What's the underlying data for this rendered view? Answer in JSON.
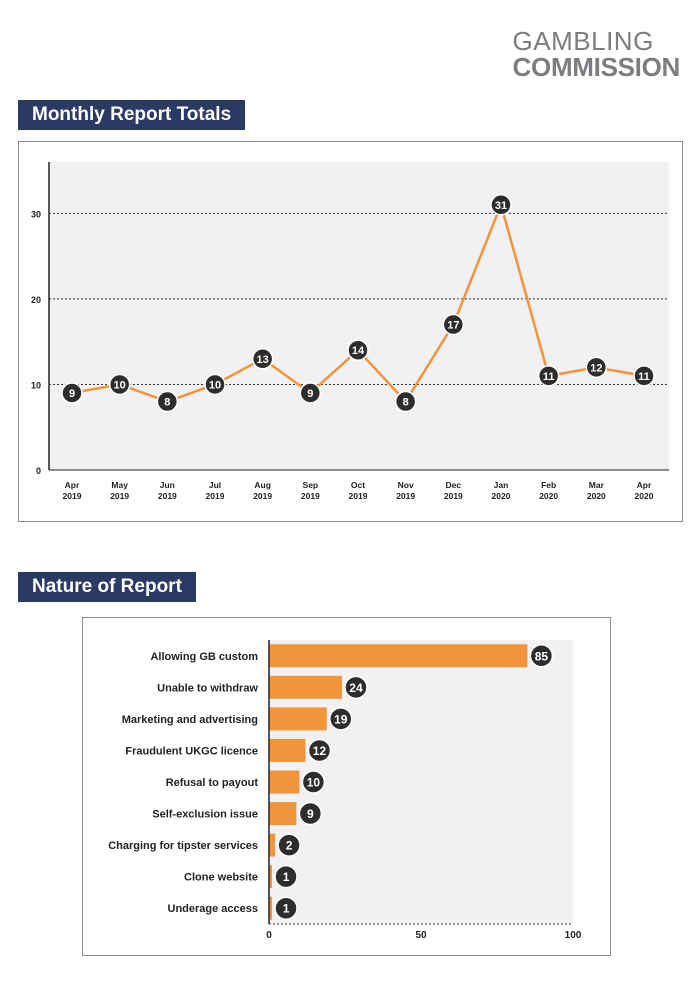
{
  "logo": {
    "line1": "GAMBLING",
    "line2": "COMMISSION"
  },
  "sections": {
    "monthly_title": "Monthly Report Totals",
    "nature_title": "Nature of Report"
  },
  "chart_data": [
    {
      "type": "line",
      "title": "Monthly Report Totals",
      "categories": [
        [
          "Apr",
          "2019"
        ],
        [
          "May",
          "2019"
        ],
        [
          "Jun",
          "2019"
        ],
        [
          "Jul",
          "2019"
        ],
        [
          "Aug",
          "2019"
        ],
        [
          "Sep",
          "2019"
        ],
        [
          "Oct",
          "2019"
        ],
        [
          "Nov",
          "2019"
        ],
        [
          "Dec",
          "2019"
        ],
        [
          "Jan",
          "2020"
        ],
        [
          "Feb",
          "2020"
        ],
        [
          "Mar",
          "2020"
        ],
        [
          "Apr",
          "2020"
        ]
      ],
      "values": [
        9,
        10,
        8,
        10,
        13,
        9,
        14,
        8,
        17,
        31,
        11,
        12,
        11
      ],
      "yticks": [
        0,
        10,
        20,
        30
      ],
      "ylim": [
        0,
        36
      ],
      "grid": true,
      "line_color": "#f0953a",
      "label_color": "#2d2d2d"
    },
    {
      "type": "bar",
      "orientation": "horizontal",
      "title": "Nature of Report",
      "categories": [
        "Allowing GB custom",
        "Unable to withdraw",
        "Marketing and advertising",
        "Fraudulent UKGC licence",
        "Refusal to payout",
        "Self-exclusion issue",
        "Charging for tipster services",
        "Clone website",
        "Underage access"
      ],
      "values": [
        85,
        24,
        19,
        12,
        10,
        9,
        2,
        1,
        1
      ],
      "xticks": [
        0,
        50,
        100
      ],
      "xlim": [
        0,
        100
      ],
      "bar_color": "#f0953a",
      "label_color": "#2d2d2d"
    }
  ]
}
